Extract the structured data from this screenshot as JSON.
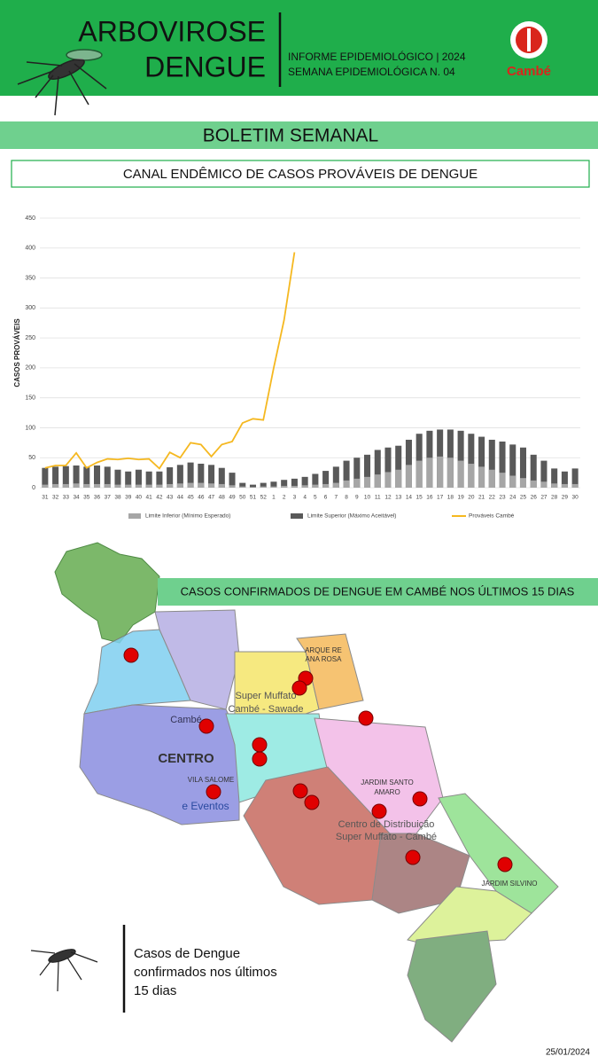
{
  "header": {
    "title_line1": "ARBOVIROSE",
    "title_line2": "DENGUE",
    "info_line1": "INFORME EPIDEMIOLÓGICO | 2024",
    "info_line2": "SEMANA EPIDEMIOLÓGICA  N. 04",
    "logo": "Cambé"
  },
  "banner": "BOLETIM SEMANAL",
  "chart_data": {
    "type": "bar_line",
    "title": "CANAL ENDÊMICO DE CASOS PROVÁVEIS DE DENGUE",
    "y_label": "CASOS PROVÁVEIS",
    "categories": [
      "31",
      "32",
      "33",
      "34",
      "35",
      "36",
      "37",
      "38",
      "39",
      "40",
      "41",
      "42",
      "43",
      "44",
      "45",
      "46",
      "47",
      "48",
      "49",
      "50",
      "51",
      "52",
      "1",
      "2",
      "3",
      "4",
      "5",
      "6",
      "7",
      "8",
      "9",
      "10",
      "11",
      "12",
      "13",
      "14",
      "15",
      "16",
      "17",
      "18",
      "19",
      "20",
      "21",
      "22",
      "23",
      "24",
      "25",
      "26",
      "27",
      "28",
      "29",
      "30"
    ],
    "series": [
      {
        "name": "Limite Inferior (Mínimo Esperado)",
        "kind": "bar",
        "color": "#a6a6a6",
        "values": [
          5,
          6,
          6,
          7,
          6,
          6,
          6,
          5,
          5,
          5,
          5,
          5,
          6,
          7,
          8,
          8,
          7,
          6,
          4,
          2,
          1,
          2,
          2,
          3,
          3,
          4,
          5,
          6,
          8,
          12,
          15,
          18,
          22,
          26,
          30,
          38,
          45,
          50,
          52,
          50,
          45,
          40,
          35,
          30,
          25,
          20,
          16,
          12,
          10,
          7,
          6,
          6
        ]
      },
      {
        "name": "Limite Superior (Máximo Aceitável)",
        "kind": "bar",
        "color": "#595959",
        "values": [
          33,
          35,
          36,
          37,
          35,
          37,
          35,
          30,
          27,
          30,
          27,
          27,
          34,
          38,
          42,
          40,
          38,
          33,
          25,
          8,
          5,
          8,
          10,
          13,
          15,
          18,
          23,
          28,
          35,
          45,
          50,
          55,
          63,
          67,
          70,
          80,
          90,
          95,
          97,
          97,
          95,
          90,
          85,
          80,
          77,
          72,
          67,
          55,
          45,
          32,
          27,
          32
        ]
      },
      {
        "name": "Prováveis Cambé",
        "kind": "line",
        "color": "#f5b820",
        "values": [
          33,
          37,
          37,
          58,
          33,
          42,
          48,
          47,
          49,
          47,
          48,
          32,
          59,
          50,
          75,
          72,
          52,
          72,
          77,
          108,
          115,
          113,
          200,
          280,
          393,
          null,
          null,
          null,
          null,
          null,
          null,
          null,
          null,
          null,
          null,
          null,
          null,
          null,
          null,
          null,
          null,
          null,
          null,
          null,
          null,
          null,
          null,
          null,
          null,
          null,
          null,
          null
        ]
      }
    ],
    "ylim": [
      0,
      450
    ],
    "yticks": [
      0,
      50,
      100,
      150,
      200,
      250,
      300,
      350,
      400,
      450
    ],
    "grid": true
  },
  "map": {
    "title": "CASOS CONFIRMADOS DE DENGUE EM CAMBÉ NOS ÚLTIMOS 15 DIAS",
    "labels": [
      "CENTRO",
      "Cambé",
      "VILA SALOME",
      "e Eventos",
      "Super Muffato",
      "Cambé - Sawade",
      "ARQUE RE",
      "ANA ROSA",
      "JARDIM SANTO",
      "AMARO",
      "Centro de Distribuição",
      "Super Muffato - Cambé",
      "JARDIM SILVINO"
    ],
    "legend_lines": [
      "Casos de Dengue",
      "confirmados nos últimos",
      "15 dias"
    ]
  },
  "date": "25/01/2024"
}
